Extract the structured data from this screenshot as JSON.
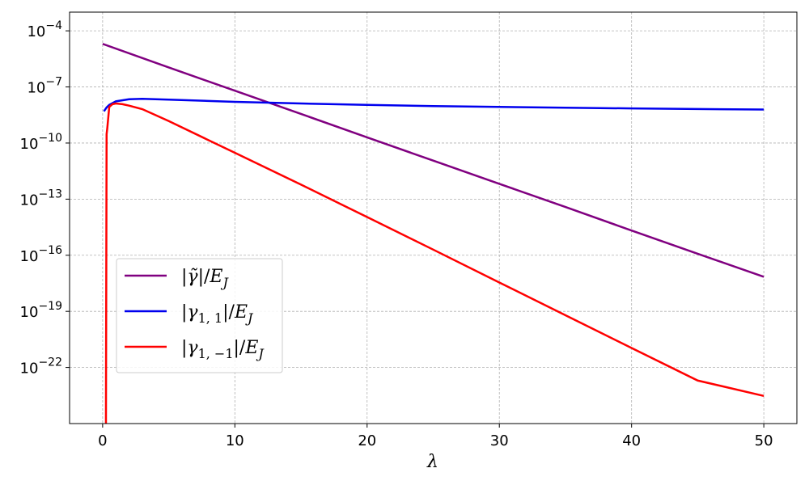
{
  "chart_data": {
    "type": "line",
    "xlabel": "λ",
    "ylabel": "",
    "xlim": [
      -2.5,
      52.5
    ],
    "ylim": [
      1e-25,
      0.001
    ],
    "yscale": "log",
    "grid": true,
    "legend_position": "lower-left",
    "x_ticks": [
      {
        "value": 0,
        "label": "0"
      },
      {
        "value": 10,
        "label": "10"
      },
      {
        "value": 20,
        "label": "20"
      },
      {
        "value": 30,
        "label": "30"
      },
      {
        "value": 40,
        "label": "40"
      },
      {
        "value": 50,
        "label": "50"
      }
    ],
    "y_ticks": [
      {
        "value": 0.0001,
        "base": "10",
        "exp": "−4"
      },
      {
        "value": 1e-07,
        "base": "10",
        "exp": "−7"
      },
      {
        "value": 1e-10,
        "base": "10",
        "exp": "−10"
      },
      {
        "value": 1e-13,
        "base": "10",
        "exp": "−13"
      },
      {
        "value": 1e-16,
        "base": "10",
        "exp": "−16"
      },
      {
        "value": 1e-19,
        "base": "10",
        "exp": "−19"
      },
      {
        "value": 1e-22,
        "base": "10",
        "exp": "−22"
      }
    ],
    "series": [
      {
        "name": "|γ̃|/E_J",
        "color": "#800080",
        "x": [
          0,
          5,
          10,
          15,
          20,
          25,
          30,
          35,
          40,
          45,
          50
        ],
        "y": [
          2e-05,
          1.1e-06,
          6.3e-08,
          3.6e-09,
          2e-10,
          1.15e-11,
          6.6e-13,
          3.8e-14,
          2.1e-15,
          1.2e-16,
          7e-18
        ]
      },
      {
        "name": "|γ_{1,1}|/E_J",
        "color": "#0000ee",
        "x": [
          0.1,
          0.3,
          0.5,
          1,
          2,
          3,
          5,
          10,
          15,
          20,
          25,
          30,
          35,
          40,
          45,
          50
        ],
        "y": [
          5e-09,
          8e-09,
          1.1e-08,
          1.7e-08,
          2.2e-08,
          2.3e-08,
          2.1e-08,
          1.6e-08,
          1.3e-08,
          1.1e-08,
          9.5e-09,
          8.5e-09,
          7.7e-09,
          7.1e-09,
          6.6e-09,
          6.2e-09
        ]
      },
      {
        "name": "|γ_{1,−1}|/E_J",
        "color": "#ff0000",
        "x": [
          0.25,
          0.3,
          0.35,
          0.5,
          0.75,
          1,
          1.5,
          2,
          3,
          5,
          10,
          15,
          20,
          25,
          30,
          35,
          40,
          45,
          50
        ],
        "y": [
          1e-25,
          3e-10,
          6e-10,
          8.5e-09,
          1.2e-08,
          1.3e-08,
          1.2e-08,
          1e-08,
          6.5e-09,
          1.5e-09,
          3e-11,
          6e-13,
          1.1e-14,
          2e-16,
          3.5e-18,
          6.2e-20,
          1.1e-21,
          2e-23,
          3e-24
        ]
      }
    ]
  },
  "legend": {
    "items": [
      {
        "pre": "|",
        "sym": "γ̃",
        "post": "|/",
        "e": "E",
        "sub": "J"
      },
      {
        "pre": "|",
        "sym": "γ",
        "idx": "1, 1",
        "post": "|/",
        "e": "E",
        "sub": "J"
      },
      {
        "pre": "|",
        "sym": "γ",
        "idx": "1, −1",
        "post": "|/",
        "e": "E",
        "sub": "J"
      }
    ]
  }
}
